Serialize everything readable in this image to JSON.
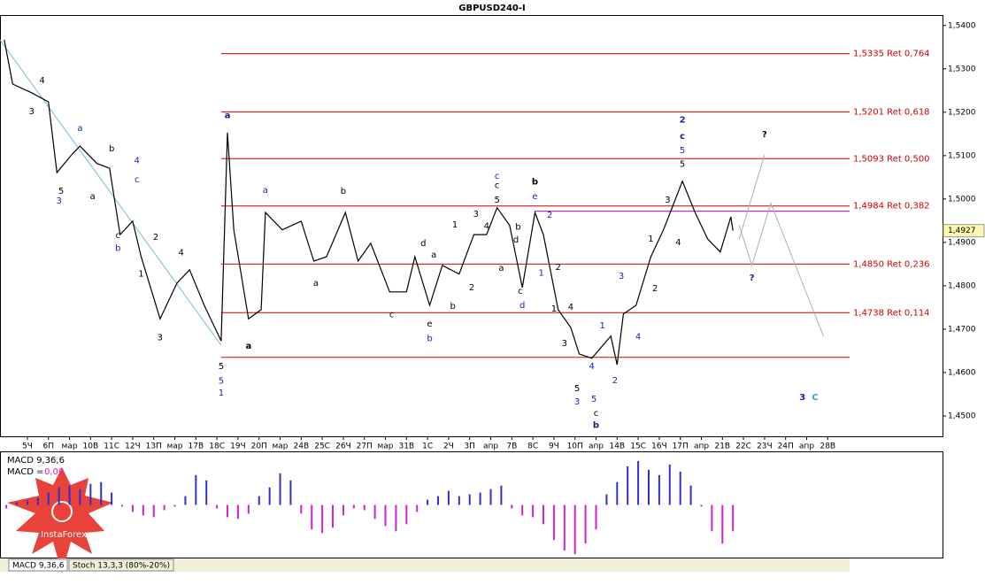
{
  "chart_data": {
    "type": "line",
    "title": "GBPUSD240-I",
    "xlim": [
      -1.3,
      43.45
    ],
    "ylim": [
      1.4453,
      1.5422
    ],
    "xticks": [
      {
        "value": 0,
        "label": "5Ч"
      },
      {
        "value": 1,
        "label": "6П"
      },
      {
        "value": 2,
        "label": "мар"
      },
      {
        "value": 3,
        "label": "10В"
      },
      {
        "value": 4,
        "label": "11С"
      },
      {
        "value": 5,
        "label": "12Ч"
      },
      {
        "value": 6,
        "label": "13П"
      },
      {
        "value": 7,
        "label": "мар"
      },
      {
        "value": 8,
        "label": "17В"
      },
      {
        "value": 9,
        "label": "18С"
      },
      {
        "value": 10,
        "label": "19Ч"
      },
      {
        "value": 11,
        "label": "20П"
      },
      {
        "value": 12,
        "label": "мар"
      },
      {
        "value": 13,
        "label": "24В"
      },
      {
        "value": 14,
        "label": "25С"
      },
      {
        "value": 15,
        "label": "26Ч"
      },
      {
        "value": 16,
        "label": "27П"
      },
      {
        "value": 17,
        "label": "мар"
      },
      {
        "value": 18,
        "label": "31В"
      },
      {
        "value": 19,
        "label": "1С"
      },
      {
        "value": 20,
        "label": "2Ч"
      },
      {
        "value": 21,
        "label": "3П"
      },
      {
        "value": 22,
        "label": "апр"
      },
      {
        "value": 23,
        "label": "7В"
      },
      {
        "value": 24,
        "label": "8С"
      },
      {
        "value": 25,
        "label": "9Ч"
      },
      {
        "value": 26,
        "label": "10П"
      },
      {
        "value": 27,
        "label": "апр"
      },
      {
        "value": 28,
        "label": "14В"
      },
      {
        "value": 29,
        "label": "15С"
      },
      {
        "value": 30,
        "label": "16Ч"
      },
      {
        "value": 31,
        "label": "17П"
      },
      {
        "value": 32,
        "label": "апр"
      },
      {
        "value": 33,
        "label": "21В"
      },
      {
        "value": 34,
        "label": "22С"
      },
      {
        "value": 35,
        "label": "23Ч"
      },
      {
        "value": 36,
        "label": "24П"
      },
      {
        "value": 37,
        "label": "апр"
      },
      {
        "value": 38,
        "label": "28В"
      }
    ],
    "yticks": [
      {
        "value": 1.54,
        "label": "1,5400"
      },
      {
        "value": 1.53,
        "label": "1,5300"
      },
      {
        "value": 1.52,
        "label": "1,5200"
      },
      {
        "value": 1.51,
        "label": "1,5100"
      },
      {
        "value": 1.5,
        "label": "1,5000"
      },
      {
        "value": 1.49,
        "label": "1,4900"
      },
      {
        "value": 1.48,
        "label": "1,4800"
      },
      {
        "value": 1.47,
        "label": "1,4700"
      },
      {
        "value": 1.46,
        "label": "1,4600"
      },
      {
        "value": 1.45,
        "label": "1,4500"
      }
    ],
    "series": [
      {
        "color": "#000000",
        "x": [
          -1.1,
          -0.7,
          0.2,
          1.0,
          1.4,
          2.1,
          2.5,
          3.3,
          3.9,
          4.4,
          5.0,
          5.4,
          6.3,
          7.1,
          7.7,
          8.4,
          9.2,
          9.5,
          9.8,
          10.5,
          11.1,
          11.3,
          12.1,
          13.0,
          13.6,
          14.2,
          15.1,
          15.7,
          16.3,
          17.2,
          18.0,
          18.4,
          19.1,
          19.7,
          20.5,
          21.2,
          21.8,
          22.3,
          22.9,
          23.5,
          24.1,
          24.5,
          25.2,
          25.8,
          26.2,
          26.8,
          27.7,
          28.0,
          28.3,
          28.9,
          29.6,
          30.2,
          31.1,
          31.7,
          32.3,
          32.9,
          33.4,
          33.5
        ],
        "values": [
          1.5367,
          1.5265,
          1.5245,
          1.5224,
          1.5061,
          1.5102,
          1.5122,
          1.5082,
          1.5071,
          1.4918,
          1.4949,
          1.4867,
          1.4724,
          1.4806,
          1.4837,
          1.4755,
          1.4673,
          1.5153,
          1.4929,
          1.4724,
          1.4745,
          1.4969,
          1.4929,
          1.4949,
          1.4857,
          1.4867,
          1.4969,
          1.4857,
          1.4898,
          1.4786,
          1.4786,
          1.4867,
          1.4755,
          1.4847,
          1.4827,
          1.4918,
          1.4918,
          1.498,
          1.4939,
          1.4796,
          1.4969,
          1.4918,
          1.4745,
          1.4704,
          1.4643,
          1.4633,
          1.4684,
          1.4618,
          1.4735,
          1.4755,
          1.4867,
          1.4929,
          1.5041,
          1.4969,
          1.4908,
          1.4878,
          1.4959,
          1.4927
        ]
      }
    ],
    "last": {
      "value": 1.4927,
      "label": "1,4927"
    },
    "levels": [
      {
        "value": 1.5335,
        "label": "1,5335 Ret 0,764",
        "start": 9.2,
        "color": "#d00000"
      },
      {
        "value": 1.5201,
        "label": "1,5201 Ret 0,618",
        "start": 9.2,
        "color": "#d00000"
      },
      {
        "value": 1.5093,
        "label": "1,5093 Ret 0,500",
        "start": 9.2,
        "color": "#d00000"
      },
      {
        "value": 1.4984,
        "label": "1,4984 Ret 0,382",
        "start": 9.2,
        "color": "#d00000"
      },
      {
        "value": 1.485,
        "label": "1,4850 Ret 0,236",
        "start": 9.2,
        "color": "#d00000"
      },
      {
        "value": 1.4738,
        "label": "1,4738 Ret 0,114",
        "start": 9.2,
        "color": "#d00000"
      },
      {
        "value": 1.4635,
        "start": 9.2,
        "color": "#d00000"
      },
      {
        "value": 1.4972,
        "start": 24.1,
        "color": "#c000c0"
      }
    ],
    "trendline": {
      "color": "#7fb8d8",
      "x": [
        -1.3,
        9.2
      ],
      "values": [
        1.5367,
        1.4663
      ]
    },
    "forecast": [
      {
        "color": "#b0b0b0",
        "x": [
          33.8,
          35.0
        ],
        "values": [
          1.4908,
          1.5102
        ]
      },
      {
        "color": "#b0b0b0",
        "x": [
          33.8,
          34.4,
          35.3,
          37.8
        ],
        "values": [
          1.4939,
          1.4847,
          1.499,
          1.4684
        ]
      }
    ],
    "annotations": [
      {
        "text": "4",
        "x": 0.7,
        "y": 1.5273,
        "color": "#000000"
      },
      {
        "text": "3",
        "x": 0.2,
        "y": 1.5202,
        "color": "#000000"
      },
      {
        "text": "5",
        "x": 1.6,
        "y": 1.5018,
        "color": "#000000"
      },
      {
        "text": "3",
        "x": 1.5,
        "y": 1.4996,
        "color": "#1a1ad0"
      },
      {
        "text": "a",
        "x": 2.5,
        "y": 1.5163,
        "color": "#1a1ad0"
      },
      {
        "text": "b",
        "x": 4.0,
        "y": 1.5116,
        "color": "#000000"
      },
      {
        "text": "a",
        "x": 3.1,
        "y": 1.5006,
        "color": "#000000"
      },
      {
        "text": "4",
        "x": 5.2,
        "y": 1.5088,
        "color": "#1a1ad0"
      },
      {
        "text": "c",
        "x": 5.2,
        "y": 1.5045,
        "color": "#1a1ad0"
      },
      {
        "text": "c",
        "x": 4.3,
        "y": 1.4916,
        "color": "#000000"
      },
      {
        "text": "b",
        "x": 4.3,
        "y": 1.4886,
        "color": "#1a1ad0"
      },
      {
        "text": "2",
        "x": 6.1,
        "y": 1.4912,
        "color": "#000000"
      },
      {
        "text": "1",
        "x": 5.4,
        "y": 1.4827,
        "color": "#000000"
      },
      {
        "text": "4",
        "x": 7.3,
        "y": 1.4876,
        "color": "#000000"
      },
      {
        "text": "3",
        "x": 6.3,
        "y": 1.468,
        "color": "#000000"
      },
      {
        "text": "5",
        "x": 9.2,
        "y": 1.4614,
        "color": "#000000"
      },
      {
        "text": "5",
        "x": 9.2,
        "y": 1.458,
        "color": "#1a1ad0"
      },
      {
        "text": "1",
        "x": 9.2,
        "y": 1.4553,
        "color": "#1a1ad0"
      },
      {
        "text": "a",
        "x": 9.5,
        "y": 1.5192,
        "color": "#1a1a80",
        "bold": true
      },
      {
        "text": "a",
        "x": 10.5,
        "y": 1.4661,
        "color": "#000000",
        "bold": true
      },
      {
        "text": "a",
        "x": 11.3,
        "y": 1.502,
        "color": "#1a1ad0"
      },
      {
        "text": "b",
        "x": 15.0,
        "y": 1.5018,
        "color": "#000000"
      },
      {
        "text": "a",
        "x": 13.7,
        "y": 1.4806,
        "color": "#000000"
      },
      {
        "text": "c",
        "x": 17.3,
        "y": 1.4733,
        "color": "#000000"
      },
      {
        "text": "d",
        "x": 18.8,
        "y": 1.4898,
        "color": "#000000"
      },
      {
        "text": "a",
        "x": 19.3,
        "y": 1.4871,
        "color": "#000000"
      },
      {
        "text": "e",
        "x": 19.1,
        "y": 1.4712,
        "color": "#000000"
      },
      {
        "text": "b",
        "x": 19.1,
        "y": 1.4678,
        "color": "#1a1ad0"
      },
      {
        "text": "b",
        "x": 20.2,
        "y": 1.4753,
        "color": "#000000"
      },
      {
        "text": "1",
        "x": 20.3,
        "y": 1.4941,
        "color": "#000000"
      },
      {
        "text": "2",
        "x": 21.1,
        "y": 1.4796,
        "color": "#000000"
      },
      {
        "text": "3",
        "x": 21.3,
        "y": 1.4965,
        "color": "#000000"
      },
      {
        "text": "4",
        "x": 21.8,
        "y": 1.4937,
        "color": "#000000"
      },
      {
        "text": "c",
        "x": 22.3,
        "y": 1.5053,
        "color": "#1a1ad0"
      },
      {
        "text": "c",
        "x": 22.3,
        "y": 1.5031,
        "color": "#000000"
      },
      {
        "text": "5",
        "x": 22.3,
        "y": 1.4998,
        "color": "#000000"
      },
      {
        "text": "b",
        "x": 24.1,
        "y": 1.5039,
        "color": "#000000",
        "bold": true
      },
      {
        "text": "e",
        "x": 24.1,
        "y": 1.5006,
        "color": "#1a1ad0"
      },
      {
        "text": "b",
        "x": 23.3,
        "y": 1.4935,
        "color": "#000000"
      },
      {
        "text": "a",
        "x": 22.5,
        "y": 1.4841,
        "color": "#000000"
      },
      {
        "text": "d",
        "x": 23.2,
        "y": 1.4906,
        "color": "#000000"
      },
      {
        "text": "c",
        "x": 23.4,
        "y": 1.4788,
        "color": "#000000"
      },
      {
        "text": "d",
        "x": 23.5,
        "y": 1.4755,
        "color": "#1a1ad0"
      },
      {
        "text": "1",
        "x": 24.4,
        "y": 1.4829,
        "color": "#1a1ad0"
      },
      {
        "text": "2",
        "x": 24.8,
        "y": 1.4963,
        "color": "#1a1ad0"
      },
      {
        "text": "2",
        "x": 25.2,
        "y": 1.4843,
        "color": "#000000"
      },
      {
        "text": "1",
        "x": 25.0,
        "y": 1.4747,
        "color": "#000000"
      },
      {
        "text": "4",
        "x": 25.8,
        "y": 1.4751,
        "color": "#000000"
      },
      {
        "text": "3",
        "x": 25.5,
        "y": 1.4667,
        "color": "#000000"
      },
      {
        "text": "5",
        "x": 26.1,
        "y": 1.4563,
        "color": "#000000"
      },
      {
        "text": "3",
        "x": 26.1,
        "y": 1.4533,
        "color": "#1a1ad0"
      },
      {
        "text": "4",
        "x": 26.8,
        "y": 1.4614,
        "color": "#1a1ad0"
      },
      {
        "text": "5",
        "x": 26.9,
        "y": 1.4539,
        "color": "#1a1ad0"
      },
      {
        "text": "1",
        "x": 27.3,
        "y": 1.4708,
        "color": "#1a1ad0"
      },
      {
        "text": "c",
        "x": 27.0,
        "y": 1.4506,
        "color": "#000000"
      },
      {
        "text": "b",
        "x": 27.0,
        "y": 1.4478,
        "color": "#1a1a80",
        "bold": true
      },
      {
        "text": "2",
        "x": 27.9,
        "y": 1.4582,
        "color": "#1a1ad0"
      },
      {
        "text": "3",
        "x": 28.2,
        "y": 1.4822,
        "color": "#1a1ad0"
      },
      {
        "text": "4",
        "x": 29.0,
        "y": 1.4682,
        "color": "#1a1ad0"
      },
      {
        "text": "1",
        "x": 29.6,
        "y": 1.4908,
        "color": "#000000"
      },
      {
        "text": "2",
        "x": 29.8,
        "y": 1.4794,
        "color": "#000000"
      },
      {
        "text": "3",
        "x": 30.4,
        "y": 1.4998,
        "color": "#000000"
      },
      {
        "text": "4",
        "x": 30.9,
        "y": 1.49,
        "color": "#000000"
      },
      {
        "text": "2",
        "x": 31.1,
        "y": 1.5182,
        "color": "#1a1ad0",
        "bold": true
      },
      {
        "text": "c",
        "x": 31.1,
        "y": 1.5145,
        "color": "#1a1a80",
        "bold": true
      },
      {
        "text": "5",
        "x": 31.1,
        "y": 1.5112,
        "color": "#1a1ad0"
      },
      {
        "text": "5",
        "x": 31.1,
        "y": 1.508,
        "color": "#000000"
      },
      {
        "text": "?",
        "x": 35.0,
        "y": 1.5149,
        "color": "#000000",
        "bold": true
      },
      {
        "text": "?",
        "x": 34.4,
        "y": 1.4818,
        "color": "#1a1a80",
        "bold": true
      },
      {
        "text": "3",
        "x": 36.8,
        "y": 1.4543,
        "color": "#1a1ad0",
        "bold": true
      },
      {
        "text": "C",
        "x": 37.4,
        "y": 1.4543,
        "color": "#3ca0d0",
        "bold": true
      }
    ],
    "macd": {
      "title": "MACD 9,36,6",
      "value_label": "MACD =",
      "value_text": "0,00",
      "pos_color": "#3030d0",
      "neg_color": "#d020d0",
      "lim": [
        -60,
        60
      ],
      "x": [
        -1,
        -0.5,
        0,
        0.5,
        1,
        1.5,
        2,
        2.5,
        3,
        3.5,
        4,
        4.5,
        5,
        5.5,
        6,
        6.5,
        7,
        7.5,
        8,
        8.5,
        9,
        9.5,
        10,
        10.5,
        11,
        11.5,
        12,
        12.5,
        13,
        13.5,
        14,
        14.5,
        15,
        15.5,
        16,
        16.5,
        17,
        17.5,
        18,
        18.5,
        19,
        19.5,
        20,
        20.5,
        21,
        21.5,
        22,
        22.5,
        23,
        23.5,
        24,
        24.5,
        25,
        25.5,
        26,
        26.5,
        27,
        27.5,
        28,
        28.5,
        29,
        29.5,
        30,
        30.5,
        31,
        31.5,
        32,
        32.5,
        33,
        33.5
      ],
      "values": [
        -4,
        3,
        5,
        8,
        14,
        20,
        22,
        18,
        24,
        26,
        14,
        -2,
        -8,
        -12,
        -14,
        -6,
        -2,
        10,
        34,
        28,
        -4,
        -14,
        -16,
        -10,
        10,
        20,
        36,
        28,
        -10,
        -28,
        -32,
        -26,
        -12,
        -4,
        -6,
        -16,
        -24,
        -30,
        -22,
        -8,
        6,
        10,
        16,
        10,
        12,
        14,
        18,
        22,
        -4,
        -12,
        -14,
        -22,
        -40,
        -52,
        -56,
        -44,
        -28,
        12,
        26,
        44,
        50,
        40,
        34,
        46,
        38,
        22,
        -2,
        -30,
        -44,
        -30
      ]
    },
    "tabs": [
      "MACD 9,36,6",
      "Stoch 13,3,3 (80%-20%)"
    ],
    "logo": "InstaForex"
  }
}
